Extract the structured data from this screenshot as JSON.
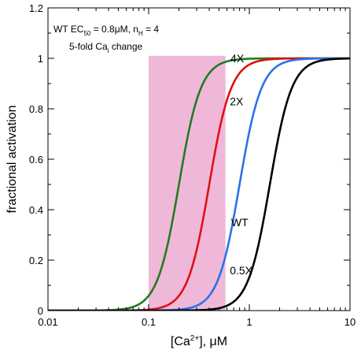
{
  "chart_data": {
    "type": "line",
    "xscale": "log",
    "xlim": [
      0.01,
      10
    ],
    "ylim": [
      0,
      1.2
    ],
    "xlabel_main": "[Ca",
    "xlabel_sup": "2+",
    "xlabel_tail": "], μM",
    "ylabel": "fractional activation",
    "x_ticks": [
      0.01,
      0.1,
      1,
      10
    ],
    "x_tick_labels": [
      "0.01",
      "0.1",
      "1",
      "10"
    ],
    "y_ticks": [
      0,
      0.2,
      0.4,
      0.6,
      0.8,
      1,
      1.2
    ],
    "y_tick_labels": [
      "0",
      "0.2",
      "0.4",
      "0.6",
      "0.8",
      "1",
      "1.2"
    ],
    "annotation": {
      "line1_a": "WT EC",
      "line1_sub": "50",
      "line1_b": " = 0.8μM,  n",
      "line1_sub2": "H",
      "line1_c": " = 4",
      "line2_a": "5-fold Ca",
      "line2_sub": "i",
      "line2_b": " change"
    },
    "shaded_region": {
      "x_start": 0.1,
      "x_end": 0.58,
      "y_start": 0,
      "y_end": 1.01,
      "color": "#f0b8d8"
    },
    "hill_coefficient": 4,
    "series": [
      {
        "name": "4X",
        "ec50": 0.2,
        "color": "#1e7d1e",
        "label_at": [
          0.65,
          1.0
        ]
      },
      {
        "name": "2X",
        "ec50": 0.4,
        "color": "#e01010",
        "label_at": [
          0.64,
          0.83
        ]
      },
      {
        "name": "WT",
        "ec50": 0.8,
        "color": "#2a72e8",
        "label_at": [
          0.66,
          0.35
        ]
      },
      {
        "name": "0.5X",
        "ec50": 1.6,
        "color": "#000000",
        "label_at": [
          0.64,
          0.16
        ]
      }
    ],
    "x_sample_points": [
      0.01,
      0.02,
      0.03,
      0.04,
      0.05,
      0.06,
      0.07,
      0.08,
      0.09,
      0.1,
      0.12,
      0.14,
      0.16,
      0.18,
      0.2,
      0.22,
      0.25,
      0.28,
      0.32,
      0.36,
      0.4,
      0.45,
      0.5,
      0.56,
      0.63,
      0.7,
      0.8,
      0.9,
      1,
      1.12,
      1.25,
      1.4,
      1.6,
      1.8,
      2,
      2.25,
      2.5,
      2.8,
      3.2,
      3.6,
      4,
      4.5,
      5,
      5.6,
      6.3,
      7,
      8,
      9,
      10
    ]
  }
}
